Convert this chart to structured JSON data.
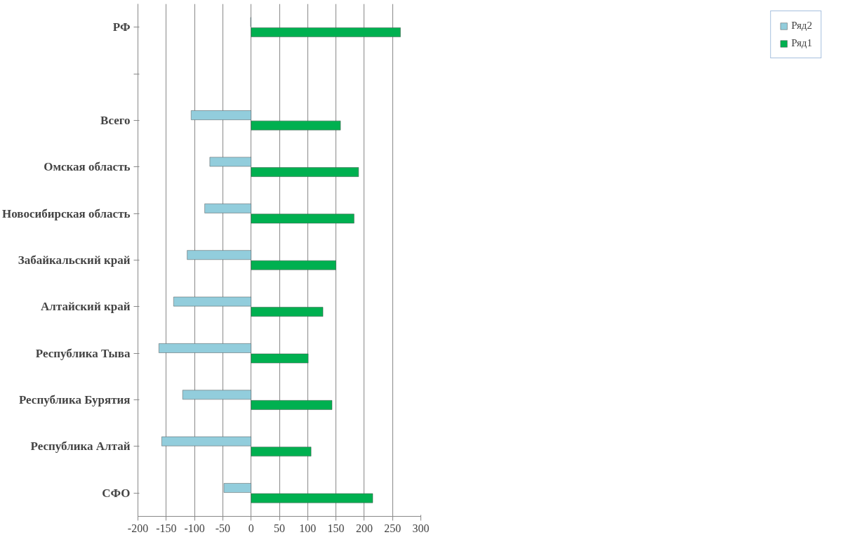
{
  "chart_data": {
    "type": "bar",
    "orientation": "horizontal",
    "categories": [
      "РФ",
      null,
      "Всего",
      "Омская область",
      "Новосибирская область",
      "Забайкальский край",
      "Алтайский край",
      "Республика Тыва",
      "Республика Бурятия",
      "Республика Алтай",
      "СФО"
    ],
    "series": [
      {
        "name": "Ряд1",
        "color": "#00b050",
        "values": [
          264,
          null,
          158,
          190,
          182,
          150,
          127,
          101,
          143,
          106,
          215
        ]
      },
      {
        "name": "Ряд2",
        "color": "#92cddc",
        "values": [
          -1,
          null,
          -106,
          -73,
          -82,
          -113,
          -137,
          -163,
          -121,
          -158,
          -48
        ]
      }
    ],
    "xlim": [
      -200,
      300
    ],
    "xticks": [
      -200,
      -150,
      -100,
      -50,
      0,
      50,
      100,
      150,
      200,
      250,
      300
    ],
    "grid": "x",
    "legend": "right"
  }
}
